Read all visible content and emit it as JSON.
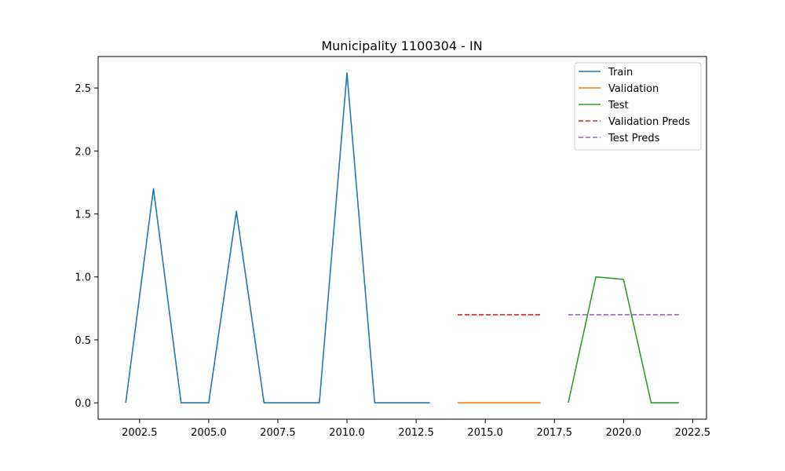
{
  "chart_data": {
    "type": "line",
    "title": "Municipality 1100304 - IN",
    "xlabel": "",
    "ylabel": "",
    "xlim": [
      2001.0,
      2023.0
    ],
    "ylim": [
      -0.13,
      2.75
    ],
    "xticks": [
      2002.5,
      2005.0,
      2007.5,
      2010.0,
      2012.5,
      2015.0,
      2017.5,
      2020.0,
      2022.5
    ],
    "xtick_labels": [
      "2002.5",
      "2005.0",
      "2007.5",
      "2010.0",
      "2012.5",
      "2015.0",
      "2017.5",
      "2020.0",
      "2022.5"
    ],
    "yticks": [
      0.0,
      0.5,
      1.0,
      1.5,
      2.0,
      2.5
    ],
    "ytick_labels": [
      "0.0",
      "0.5",
      "1.0",
      "1.5",
      "2.0",
      "2.5"
    ],
    "grid": false,
    "legend_position": "top-right",
    "series": [
      {
        "name": "Train",
        "color": "#1f77b4",
        "dash": "solid",
        "x": [
          2002,
          2003,
          2004,
          2005,
          2006,
          2007,
          2008,
          2009,
          2010,
          2011,
          2012,
          2013
        ],
        "y": [
          0.0,
          1.7,
          0.0,
          0.0,
          1.52,
          0.0,
          0.0,
          0.0,
          2.62,
          0.0,
          0.0,
          0.0
        ]
      },
      {
        "name": "Validation",
        "color": "#ff7f0e",
        "dash": "solid",
        "x": [
          2014,
          2015,
          2016,
          2017
        ],
        "y": [
          0.0,
          0.0,
          0.0,
          0.0
        ]
      },
      {
        "name": "Test",
        "color": "#2ca02c",
        "dash": "solid",
        "x": [
          2018,
          2019,
          2020,
          2021,
          2022
        ],
        "y": [
          0.0,
          1.0,
          0.98,
          0.0,
          0.0
        ]
      },
      {
        "name": "Validation Preds",
        "color": "#d62728",
        "dash": "dashed",
        "x": [
          2014,
          2015,
          2016,
          2017
        ],
        "y": [
          0.7,
          0.7,
          0.7,
          0.7
        ]
      },
      {
        "name": "Test Preds",
        "color": "#9467bd",
        "dash": "dashed",
        "x": [
          2018,
          2019,
          2020,
          2021,
          2022
        ],
        "y": [
          0.7,
          0.7,
          0.7,
          0.7,
          0.7
        ]
      }
    ]
  }
}
